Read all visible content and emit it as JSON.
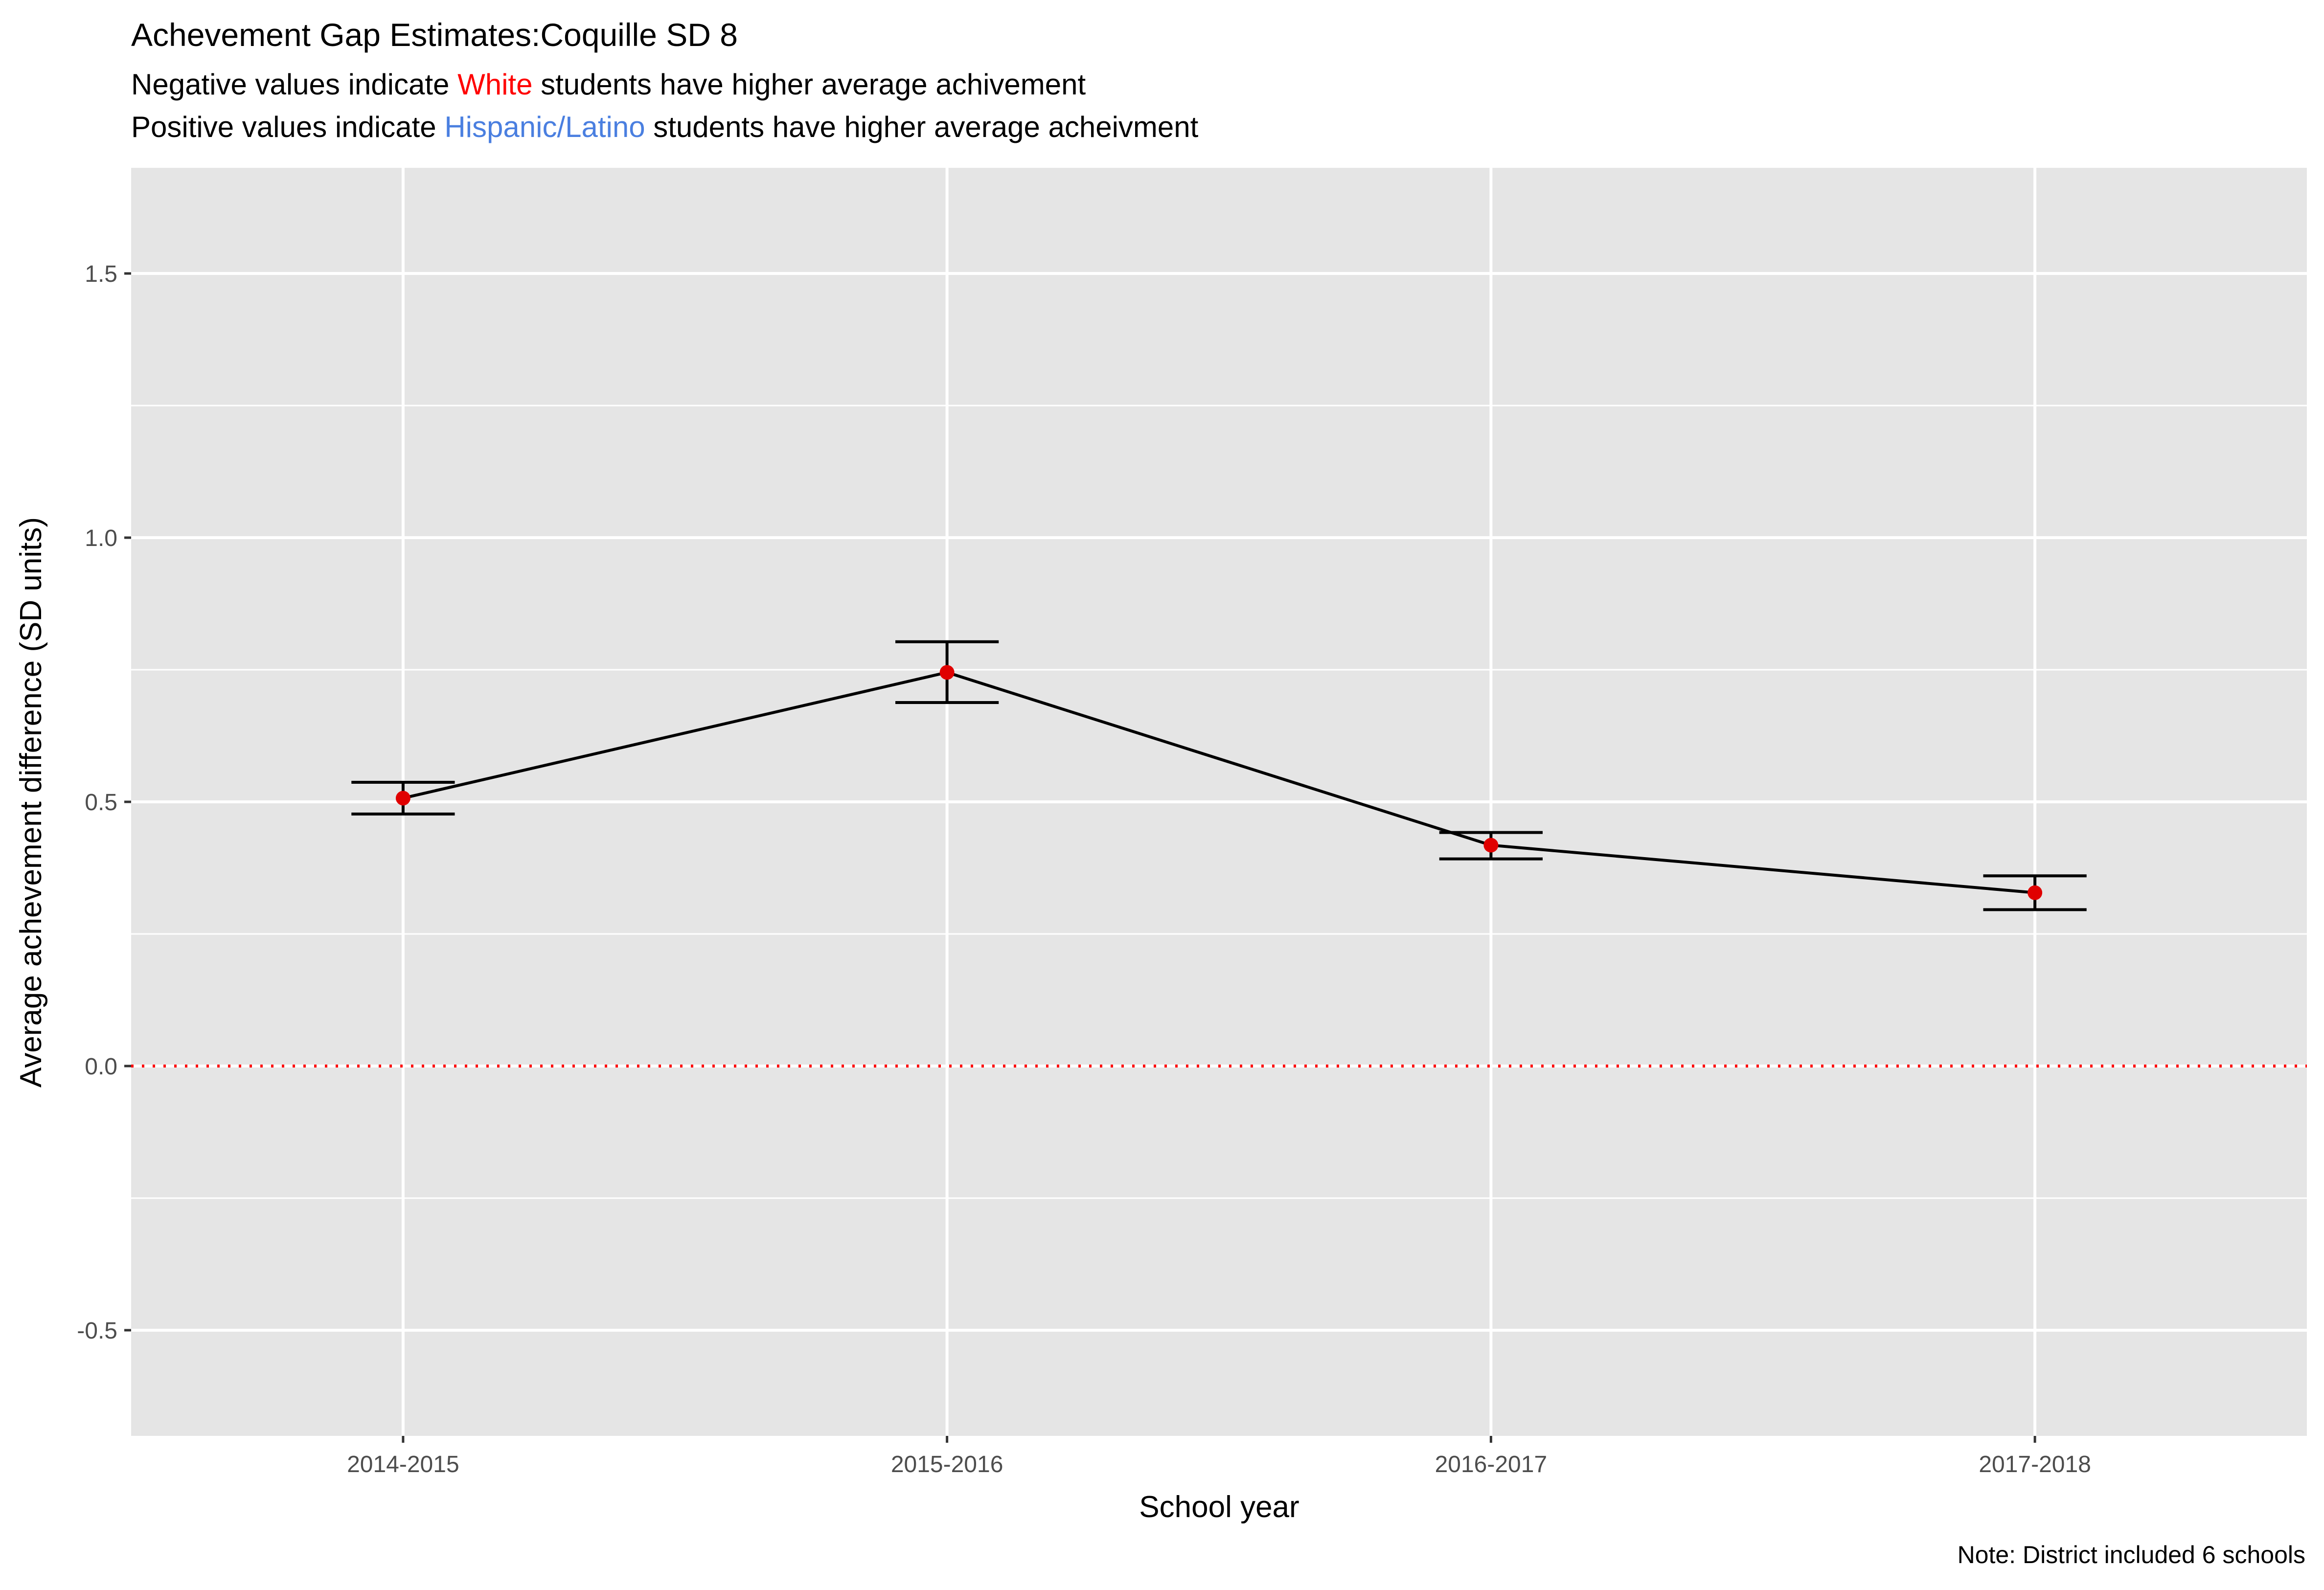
{
  "title": "Achevement Gap Estimates:Coquille SD 8",
  "subtitle": {
    "line1": {
      "before": "Negative values indicate ",
      "highlight": "White",
      "after": " students have higher average achivement"
    },
    "line2": {
      "before": "Positive values indicate ",
      "highlight": "Hispanic/Latino",
      "after": " students have higher average acheivment"
    }
  },
  "caption": "Note: District included 6 schools",
  "colors": {
    "white_group": "#ff0000",
    "hispanic_group": "#4a7fe0",
    "panel_background": "#e5e5e5",
    "grid": "#ffffff",
    "point": "#e00000",
    "line": "#000000",
    "reference_line": "#ff0000"
  },
  "chart_data": {
    "type": "line",
    "xlabel": "School year",
    "ylabel": "Average achevement difference (SD units)",
    "categories": [
      "2014-2015",
      "2015-2016",
      "2016-2017",
      "2017-2018"
    ],
    "values": [
      0.507,
      0.745,
      0.418,
      0.328
    ],
    "error_bars": {
      "lower": [
        0.477,
        0.688,
        0.392,
        0.296
      ],
      "upper": [
        0.537,
        0.803,
        0.442,
        0.36
      ]
    },
    "ylim": [
      -0.7,
      1.7
    ],
    "yticks": [
      -0.5,
      0.0,
      0.5,
      1.0,
      1.5
    ],
    "ytick_labels": [
      "-0.5",
      "0.0",
      "0.5",
      "1.0",
      "1.5"
    ],
    "reference_line": {
      "y": 0.0,
      "style": "dotted"
    },
    "grid": true,
    "legend": "none"
  }
}
